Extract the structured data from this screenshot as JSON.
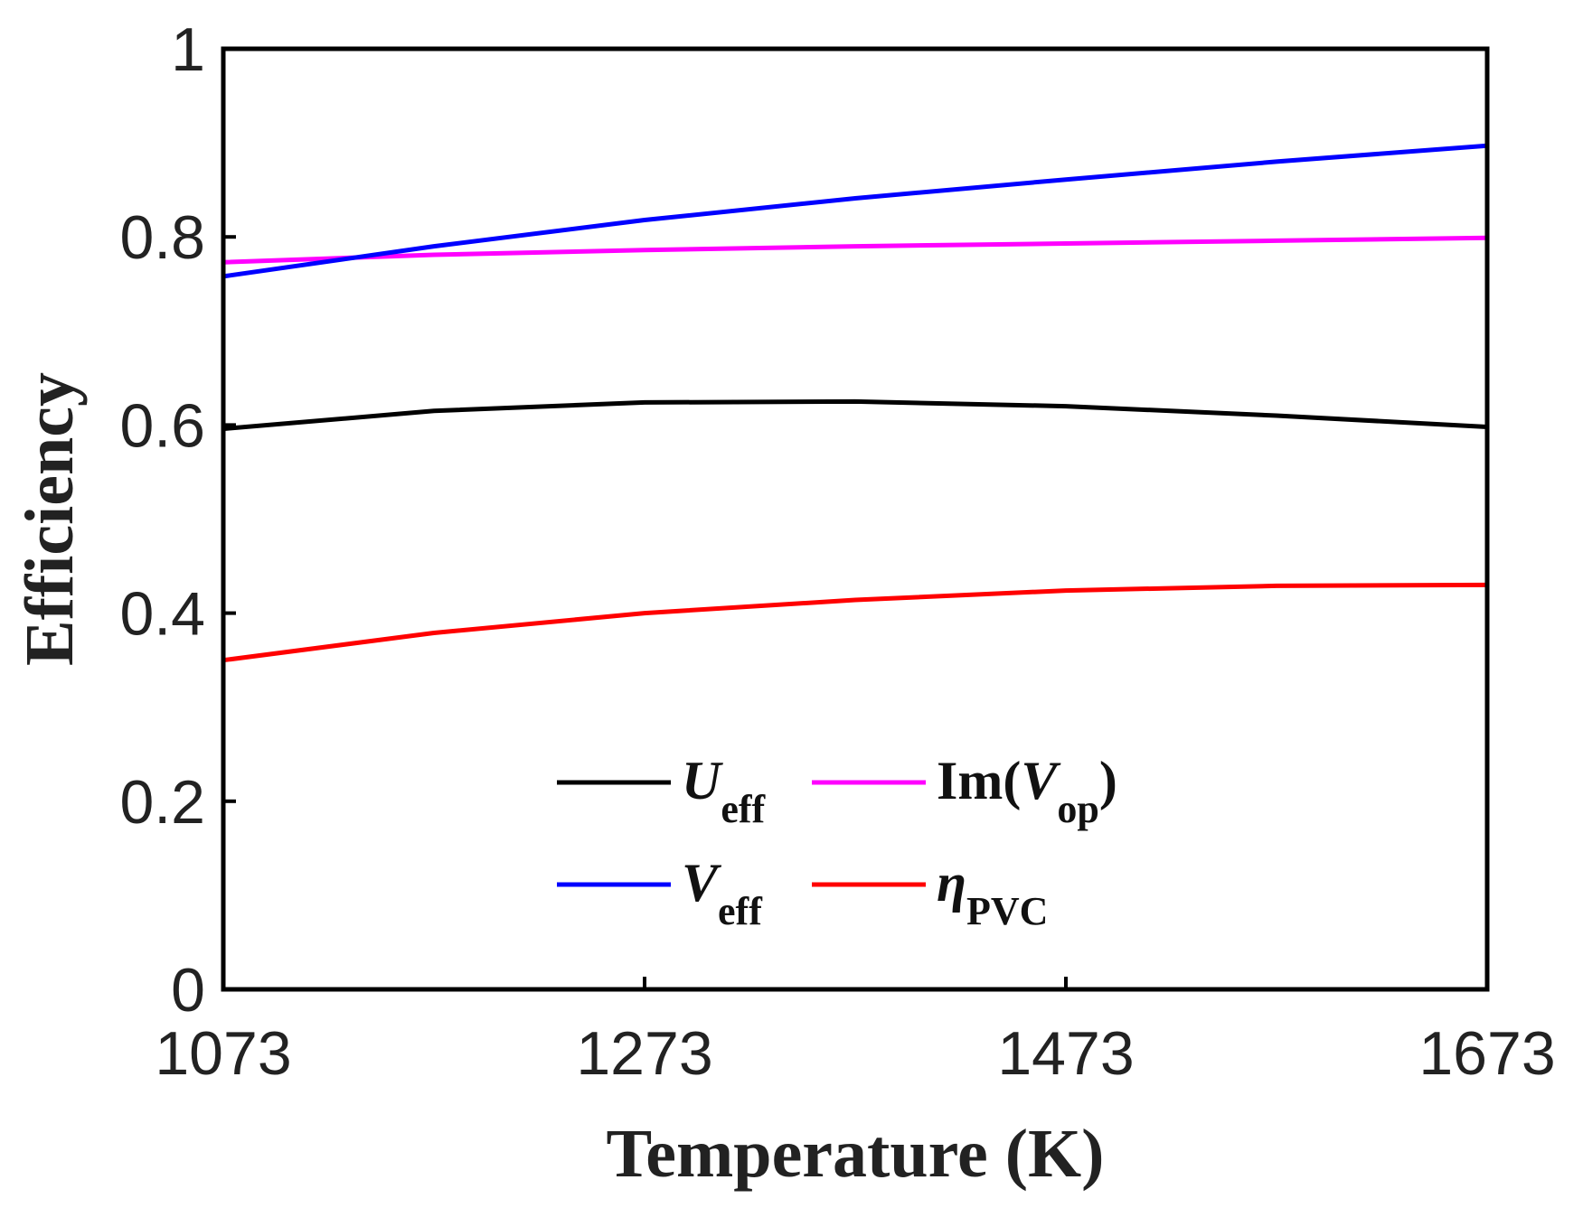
{
  "chart_data": {
    "type": "line",
    "xlabel": "Temperature (K)",
    "ylabel": "Efficiency",
    "xlim": [
      1073,
      1673
    ],
    "ylim": [
      0,
      1
    ],
    "x_ticks": [
      1073,
      1273,
      1473,
      1673
    ],
    "y_ticks": [
      0,
      0.2,
      0.4,
      0.6,
      0.8,
      1
    ],
    "y_tick_labels": [
      "0",
      "0.2",
      "0.4",
      "0.6",
      "0.8",
      "1"
    ],
    "x": [
      1073,
      1173,
      1273,
      1373,
      1473,
      1573,
      1673
    ],
    "series": [
      {
        "key": "ueff",
        "name": "U_eff",
        "label_main": "U",
        "label_sub": "eff",
        "italic": true,
        "color": "#000000",
        "values": [
          0.596,
          0.615,
          0.624,
          0.625,
          0.62,
          0.61,
          0.598
        ]
      },
      {
        "key": "imvop",
        "name": "Im(V_op)",
        "label_pre": "Im(",
        "label_main": "V",
        "label_sub": "op",
        "label_post": ")",
        "italic": false,
        "color": "#ff00ff",
        "values": [
          0.773,
          0.781,
          0.786,
          0.79,
          0.793,
          0.796,
          0.799
        ]
      },
      {
        "key": "veff",
        "name": "V_eff",
        "label_main": "V",
        "label_sub": "eff",
        "italic": true,
        "color": "#0000ff",
        "values": [
          0.758,
          0.79,
          0.818,
          0.841,
          0.861,
          0.88,
          0.897
        ]
      },
      {
        "key": "etapvc",
        "name": "η_PVC",
        "label_main": "η",
        "label_sub": "PVC",
        "italic": true,
        "color": "#ff0000",
        "values": [
          0.35,
          0.379,
          0.4,
          0.414,
          0.424,
          0.429,
          0.43
        ]
      }
    ],
    "legend": {
      "position": "bottom-center",
      "columns": 2
    },
    "grid": false
  }
}
